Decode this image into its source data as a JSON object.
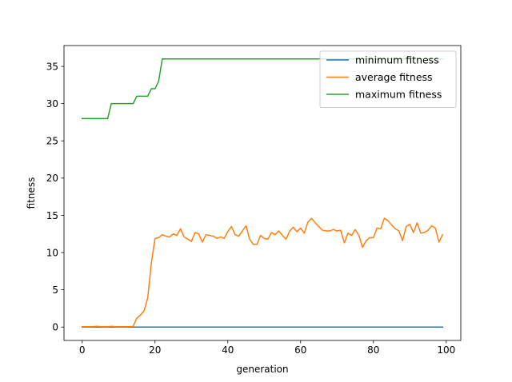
{
  "chart_data": {
    "type": "line",
    "title": "",
    "xlabel": "generation",
    "ylabel": "fitness",
    "xlim": [
      -5,
      104
    ],
    "ylim": [
      -1.8,
      37.8
    ],
    "xticks": [
      0,
      20,
      40,
      60,
      80,
      100
    ],
    "yticks": [
      0,
      5,
      10,
      15,
      20,
      25,
      30,
      35
    ],
    "grid": false,
    "legend": "top-right",
    "series": [
      {
        "name": "minimum fitness",
        "color": "#1f77b4",
        "x": [
          0,
          99
        ],
        "y": [
          0,
          0
        ]
      },
      {
        "name": "average fitness",
        "color": "#ff7f0e",
        "x": [
          0,
          1,
          2,
          3,
          4,
          5,
          6,
          7,
          8,
          9,
          10,
          11,
          12,
          13,
          14,
          15,
          16,
          17,
          18,
          19,
          20,
          21,
          22,
          23,
          24,
          25,
          26,
          27,
          28,
          29,
          30,
          31,
          32,
          33,
          34,
          35,
          36,
          37,
          38,
          39,
          40,
          41,
          42,
          43,
          44,
          45,
          46,
          47,
          48,
          49,
          50,
          51,
          52,
          53,
          54,
          55,
          56,
          57,
          58,
          59,
          60,
          61,
          62,
          63,
          64,
          65,
          66,
          67,
          68,
          69,
          70,
          71,
          72,
          73,
          74,
          75,
          76,
          77,
          78,
          79,
          80,
          81,
          82,
          83,
          84,
          85,
          86,
          87,
          88,
          89,
          90,
          91,
          92,
          93,
          94,
          95,
          96,
          97,
          98,
          99
        ],
        "y": [
          0.05,
          0.05,
          0.05,
          0.05,
          0.1,
          0.05,
          0.05,
          0.05,
          0.1,
          0.05,
          0.05,
          0.05,
          0.05,
          0.05,
          0.1,
          1.2,
          1.6,
          2.2,
          3.9,
          8.6,
          11.9,
          12.0,
          12.4,
          12.2,
          12.1,
          12.5,
          12.3,
          13.2,
          12.1,
          11.8,
          11.5,
          12.7,
          12.5,
          11.4,
          12.4,
          12.3,
          12.2,
          11.9,
          12.1,
          11.9,
          12.8,
          13.5,
          12.4,
          12.2,
          12.9,
          13.6,
          11.8,
          11.1,
          11.1,
          12.3,
          11.9,
          11.8,
          12.7,
          12.4,
          12.9,
          12.3,
          11.8,
          12.9,
          13.4,
          12.8,
          13.3,
          12.6,
          14.1,
          14.6,
          14.0,
          13.5,
          13.0,
          12.9,
          12.9,
          13.1,
          12.9,
          13.0,
          11.3,
          12.6,
          12.3,
          13.1,
          12.3,
          10.7,
          11.6,
          12.0,
          12.0,
          13.3,
          13.2,
          14.6,
          14.3,
          13.7,
          13.2,
          12.9,
          11.6,
          13.5,
          13.8,
          12.7,
          14.0,
          12.6,
          12.7,
          13.0,
          13.6,
          13.3,
          11.4,
          12.4
        ]
      },
      {
        "name": "maximum fitness",
        "color": "#2ca02c",
        "x": [
          0,
          7,
          8,
          14,
          15,
          18,
          19,
          20,
          21,
          22,
          99
        ],
        "y": [
          28,
          28,
          30,
          30,
          31,
          31,
          32,
          32,
          33,
          36,
          36
        ]
      }
    ]
  }
}
